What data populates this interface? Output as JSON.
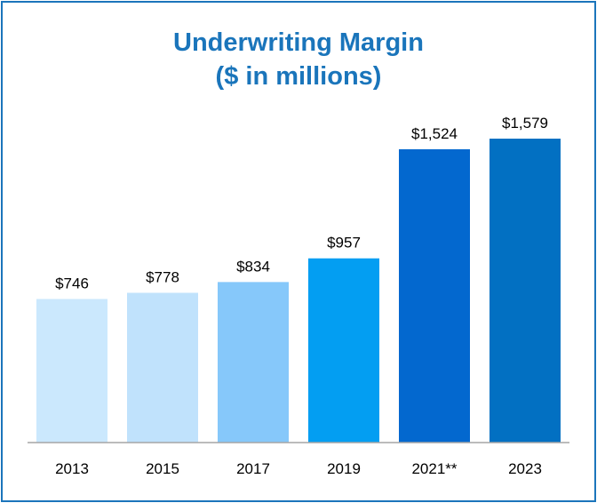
{
  "chart_data": {
    "type": "bar",
    "title_line1": "Underwriting Margin",
    "title_line2": "($ in millions)",
    "xlabel": "",
    "ylabel": "",
    "ylim": [
      0,
      1579
    ],
    "grid": false,
    "categories": [
      "2013",
      "2015",
      "2017",
      "2019",
      "2021**",
      "2023"
    ],
    "values": [
      746,
      778,
      834,
      957,
      1524,
      1579
    ],
    "value_labels": [
      "$746",
      "$778",
      "$834",
      "$957",
      "$1,524",
      "$1,579"
    ],
    "bar_colors": [
      "#cbe8fd",
      "#c0e2fc",
      "#86c8fa",
      "#039ef2",
      "#0368cf",
      "#0270c2"
    ]
  },
  "colors": {
    "frame": "#1b75bb",
    "title": "#1a75bb",
    "axis": "#a6a6a6"
  }
}
